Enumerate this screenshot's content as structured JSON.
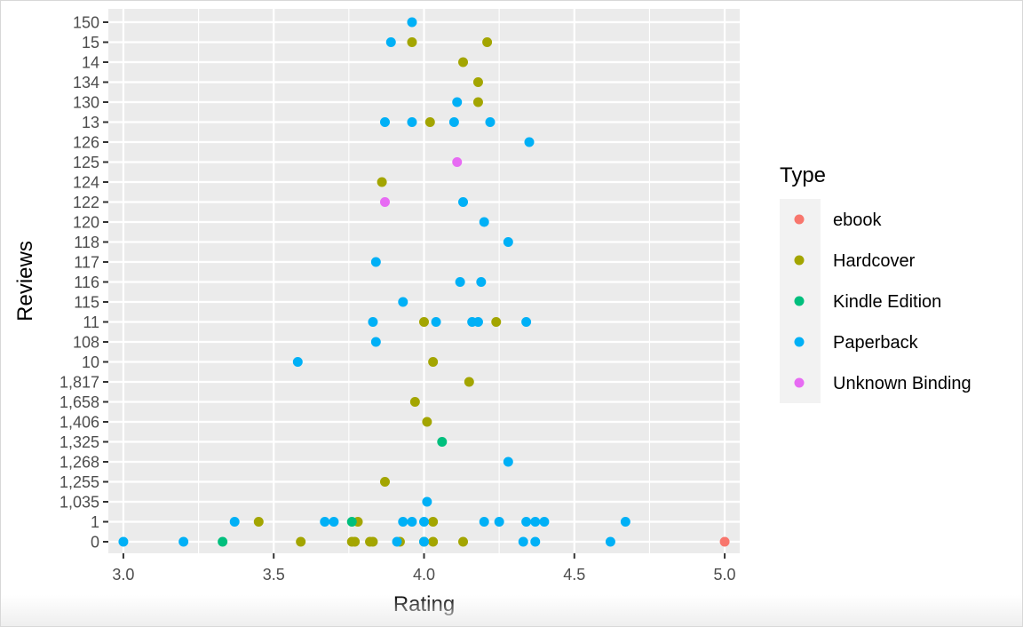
{
  "colors": {
    "panel": "#EBEBEB",
    "grid": "#FFFFFF",
    "ebook": "#F8766D",
    "Hardcover": "#A3A500",
    "Kindle Edition": "#00BF7D",
    "Paperback": "#00B0F6",
    "Unknown Binding": "#E76BF3"
  },
  "chart_data": {
    "type": "scatter",
    "xlabel": "Rating",
    "ylabel": "Reviews",
    "xlim": [
      2.95,
      5.05
    ],
    "x_ticks": [
      "3.0",
      "3.5",
      "4.0",
      "4.5",
      "5.0"
    ],
    "y_categories": [
      "0",
      "1",
      "1,035",
      "1,255",
      "1,268",
      "1,325",
      "1,406",
      "1,658",
      "1,817",
      "10",
      "108",
      "11",
      "115",
      "116",
      "117",
      "118",
      "120",
      "122",
      "124",
      "125",
      "126",
      "13",
      "130",
      "134",
      "14",
      "15",
      "150"
    ],
    "grid": true,
    "legend": {
      "title": "Type",
      "position": "right",
      "entries": [
        "ebook",
        "Hardcover",
        "Kindle Edition",
        "Paperback",
        "Unknown Binding"
      ]
    },
    "series": [
      {
        "name": "ebook",
        "points": [
          [
            5.0,
            "0"
          ]
        ]
      },
      {
        "name": "Hardcover",
        "points": [
          [
            3.96,
            "15"
          ],
          [
            4.21,
            "15"
          ],
          [
            4.13,
            "14"
          ],
          [
            4.18,
            "134"
          ],
          [
            4.18,
            "130"
          ],
          [
            4.02,
            "13"
          ],
          [
            3.86,
            "124"
          ],
          [
            4.0,
            "11"
          ],
          [
            4.24,
            "11"
          ],
          [
            4.03,
            "10"
          ],
          [
            4.15,
            "1,817"
          ],
          [
            3.97,
            "1,658"
          ],
          [
            4.01,
            "1,406"
          ],
          [
            3.87,
            "1,255"
          ],
          [
            3.45,
            "1"
          ],
          [
            3.78,
            "1"
          ],
          [
            4.03,
            "1"
          ],
          [
            3.59,
            "0"
          ],
          [
            3.76,
            "0"
          ],
          [
            3.77,
            "0"
          ],
          [
            3.82,
            "0"
          ],
          [
            3.83,
            "0"
          ],
          [
            3.92,
            "0"
          ],
          [
            4.0,
            "0"
          ],
          [
            4.03,
            "0"
          ],
          [
            4.13,
            "0"
          ]
        ]
      },
      {
        "name": "Kindle Edition",
        "points": [
          [
            4.06,
            "1,325"
          ],
          [
            3.76,
            "1"
          ],
          [
            3.33,
            "0"
          ]
        ]
      },
      {
        "name": "Paperback",
        "points": [
          [
            3.96,
            "150"
          ],
          [
            3.89,
            "15"
          ],
          [
            4.11,
            "130"
          ],
          [
            3.87,
            "13"
          ],
          [
            3.96,
            "13"
          ],
          [
            4.1,
            "13"
          ],
          [
            4.22,
            "13"
          ],
          [
            4.35,
            "126"
          ],
          [
            4.13,
            "122"
          ],
          [
            4.2,
            "120"
          ],
          [
            4.28,
            "118"
          ],
          [
            3.84,
            "117"
          ],
          [
            4.12,
            "116"
          ],
          [
            4.19,
            "116"
          ],
          [
            3.93,
            "115"
          ],
          [
            3.83,
            "11"
          ],
          [
            4.04,
            "11"
          ],
          [
            4.16,
            "11"
          ],
          [
            4.18,
            "11"
          ],
          [
            4.34,
            "11"
          ],
          [
            3.84,
            "108"
          ],
          [
            3.58,
            "10"
          ],
          [
            4.28,
            "1,268"
          ],
          [
            4.01,
            "1,035"
          ],
          [
            3.37,
            "1"
          ],
          [
            3.67,
            "1"
          ],
          [
            3.7,
            "1"
          ],
          [
            3.93,
            "1"
          ],
          [
            3.96,
            "1"
          ],
          [
            4.0,
            "1"
          ],
          [
            4.2,
            "1"
          ],
          [
            4.25,
            "1"
          ],
          [
            4.34,
            "1"
          ],
          [
            4.37,
            "1"
          ],
          [
            4.4,
            "1"
          ],
          [
            4.67,
            "1"
          ],
          [
            3.0,
            "0"
          ],
          [
            3.2,
            "0"
          ],
          [
            3.91,
            "0"
          ],
          [
            4.0,
            "0"
          ],
          [
            4.33,
            "0"
          ],
          [
            4.37,
            "0"
          ],
          [
            4.62,
            "0"
          ]
        ]
      },
      {
        "name": "Unknown Binding",
        "points": [
          [
            4.11,
            "125"
          ],
          [
            3.87,
            "122"
          ]
        ]
      }
    ]
  }
}
